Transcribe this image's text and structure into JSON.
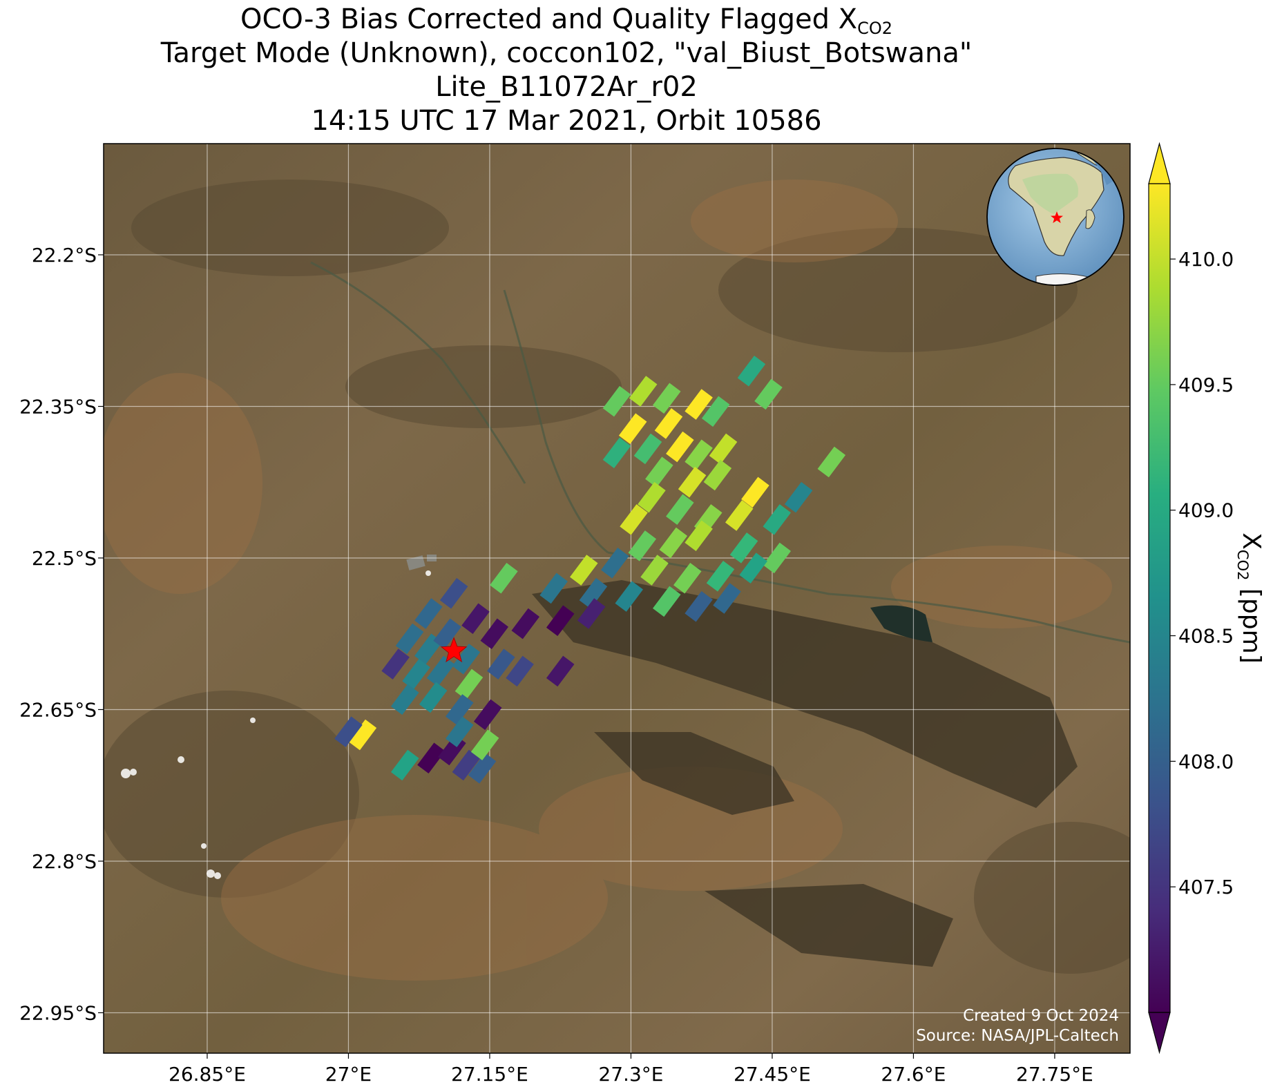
{
  "title": {
    "line1_prefix": "OCO-3 Bias Corrected and Quality Flagged X",
    "line1_sub": "CO2",
    "line2": "Target Mode (Unknown), coccon102, \"val_Biust_Botswana\"",
    "line3": "Lite_B11072Ar_r02",
    "line4": "14:15 UTC 17 Mar 2021, Orbit 10586"
  },
  "map": {
    "lon_range": [
      26.74,
      27.83
    ],
    "lat_range": [
      -22.99,
      -22.09
    ],
    "lon_ticks": [
      "26.85°E",
      "27°E",
      "27.15°E",
      "27.3°E",
      "27.45°E",
      "27.6°E",
      "27.75°E"
    ],
    "lon_tick_values": [
      26.85,
      27.0,
      27.15,
      27.3,
      27.45,
      27.6,
      27.75
    ],
    "lat_ticks": [
      "22.2°S",
      "22.35°S",
      "22.5°S",
      "22.65°S",
      "22.8°S",
      "22.95°S"
    ],
    "lat_tick_values": [
      -22.2,
      -22.35,
      -22.5,
      -22.65,
      -22.8,
      -22.95
    ],
    "gridlines": true,
    "target_marker": {
      "lon": 27.112,
      "lat": -22.592,
      "color": "#ff0000",
      "shape": "star"
    },
    "credit_line1": "Created 9 Oct 2024",
    "credit_line2": "Source: NASA/JPL-Caltech",
    "inset_globe": {
      "placement": "top-right",
      "marker_color": "#ff0000"
    }
  },
  "colorbar": {
    "label_prefix": "X",
    "label_sub": "CO2",
    "label_suffix": " [ppm]",
    "min": 407.0,
    "max": 410.3,
    "ticks": [
      "407.5",
      "408.0",
      "408.5",
      "409.0",
      "409.5",
      "410.0"
    ],
    "tick_values": [
      407.5,
      408.0,
      408.5,
      409.0,
      409.5,
      410.0
    ],
    "colormap": "viridis",
    "extend": "both"
  },
  "chart_data": {
    "type": "heatmap",
    "value_unit": "ppm",
    "soundings": [
      {
        "lon": 27.285,
        "lat": -22.345,
        "v": 409.5
      },
      {
        "lon": 27.313,
        "lat": -22.335,
        "v": 409.9
      },
      {
        "lon": 27.338,
        "lat": -22.342,
        "v": 409.6
      },
      {
        "lon": 27.372,
        "lat": -22.348,
        "v": 410.3
      },
      {
        "lon": 27.39,
        "lat": -22.355,
        "v": 409.4
      },
      {
        "lon": 27.428,
        "lat": -22.315,
        "v": 409.0
      },
      {
        "lon": 27.446,
        "lat": -22.338,
        "v": 409.5
      },
      {
        "lon": 27.34,
        "lat": -22.367,
        "v": 410.3
      },
      {
        "lon": 27.302,
        "lat": -22.372,
        "v": 410.3
      },
      {
        "lon": 27.285,
        "lat": -22.396,
        "v": 409.1
      },
      {
        "lon": 27.318,
        "lat": -22.392,
        "v": 409.3
      },
      {
        "lon": 27.352,
        "lat": -22.39,
        "v": 410.3
      },
      {
        "lon": 27.372,
        "lat": -22.398,
        "v": 409.7
      },
      {
        "lon": 27.398,
        "lat": -22.392,
        "v": 410.0
      },
      {
        "lon": 27.33,
        "lat": -22.415,
        "v": 409.6
      },
      {
        "lon": 27.365,
        "lat": -22.425,
        "v": 410.1
      },
      {
        "lon": 27.392,
        "lat": -22.418,
        "v": 409.8
      },
      {
        "lon": 27.432,
        "lat": -22.435,
        "v": 410.3
      },
      {
        "lon": 27.478,
        "lat": -22.44,
        "v": 408.5
      },
      {
        "lon": 27.513,
        "lat": -22.405,
        "v": 409.6
      },
      {
        "lon": 27.322,
        "lat": -22.44,
        "v": 409.9
      },
      {
        "lon": 27.352,
        "lat": -22.452,
        "v": 409.5
      },
      {
        "lon": 27.382,
        "lat": -22.462,
        "v": 409.7
      },
      {
        "lon": 27.415,
        "lat": -22.458,
        "v": 410.1
      },
      {
        "lon": 27.455,
        "lat": -22.462,
        "v": 409.0
      },
      {
        "lon": 27.303,
        "lat": -22.462,
        "v": 410.1
      },
      {
        "lon": 27.312,
        "lat": -22.488,
        "v": 409.5
      },
      {
        "lon": 27.345,
        "lat": -22.485,
        "v": 409.7
      },
      {
        "lon": 27.372,
        "lat": -22.478,
        "v": 409.9
      },
      {
        "lon": 27.42,
        "lat": -22.49,
        "v": 409.2
      },
      {
        "lon": 27.455,
        "lat": -22.5,
        "v": 409.5
      },
      {
        "lon": 27.283,
        "lat": -22.505,
        "v": 408.2
      },
      {
        "lon": 27.325,
        "lat": -22.512,
        "v": 409.8
      },
      {
        "lon": 27.36,
        "lat": -22.52,
        "v": 409.6
      },
      {
        "lon": 27.395,
        "lat": -22.518,
        "v": 409.2
      },
      {
        "lon": 27.43,
        "lat": -22.51,
        "v": 408.9
      },
      {
        "lon": 27.25,
        "lat": -22.512,
        "v": 410.0
      },
      {
        "lon": 27.218,
        "lat": -22.53,
        "v": 408.3
      },
      {
        "lon": 27.26,
        "lat": -22.535,
        "v": 408.2
      },
      {
        "lon": 27.298,
        "lat": -22.538,
        "v": 408.5
      },
      {
        "lon": 27.338,
        "lat": -22.543,
        "v": 409.4
      },
      {
        "lon": 27.372,
        "lat": -22.548,
        "v": 408.0
      },
      {
        "lon": 27.402,
        "lat": -22.54,
        "v": 408.1
      },
      {
        "lon": 27.165,
        "lat": -22.52,
        "v": 409.5
      },
      {
        "lon": 27.188,
        "lat": -22.565,
        "v": 407.1
      },
      {
        "lon": 27.225,
        "lat": -22.562,
        "v": 407.0
      },
      {
        "lon": 27.258,
        "lat": -22.555,
        "v": 407.3
      },
      {
        "lon": 27.155,
        "lat": -22.575,
        "v": 407.1
      },
      {
        "lon": 27.162,
        "lat": -22.605,
        "v": 407.9
      },
      {
        "lon": 27.182,
        "lat": -22.612,
        "v": 407.7
      },
      {
        "lon": 27.225,
        "lat": -22.612,
        "v": 407.2
      },
      {
        "lon": 27.135,
        "lat": -22.56,
        "v": 407.2
      },
      {
        "lon": 27.112,
        "lat": -22.535,
        "v": 407.8
      },
      {
        "lon": 27.085,
        "lat": -22.555,
        "v": 408.1
      },
      {
        "lon": 27.065,
        "lat": -22.58,
        "v": 408.2
      },
      {
        "lon": 27.085,
        "lat": -22.59,
        "v": 408.4
      },
      {
        "lon": 27.105,
        "lat": -22.575,
        "v": 408.0
      },
      {
        "lon": 27.125,
        "lat": -22.6,
        "v": 408.3
      },
      {
        "lon": 27.05,
        "lat": -22.605,
        "v": 407.5
      },
      {
        "lon": 27.072,
        "lat": -22.615,
        "v": 408.5
      },
      {
        "lon": 27.098,
        "lat": -22.612,
        "v": 408.3
      },
      {
        "lon": 27.128,
        "lat": -22.625,
        "v": 409.6
      },
      {
        "lon": 27.06,
        "lat": -22.64,
        "v": 408.4
      },
      {
        "lon": 27.09,
        "lat": -22.638,
        "v": 408.6
      },
      {
        "lon": 27.118,
        "lat": -22.65,
        "v": 408.1
      },
      {
        "lon": 27.148,
        "lat": -22.655,
        "v": 407.1
      },
      {
        "lon": 27.015,
        "lat": -22.675,
        "v": 410.3
      },
      {
        "lon": 27.0,
        "lat": -22.672,
        "v": 407.8
      },
      {
        "lon": 27.06,
        "lat": -22.705,
        "v": 408.9
      },
      {
        "lon": 27.088,
        "lat": -22.698,
        "v": 407.0
      },
      {
        "lon": 27.11,
        "lat": -22.69,
        "v": 407.1
      },
      {
        "lon": 27.125,
        "lat": -22.705,
        "v": 407.6
      },
      {
        "lon": 27.142,
        "lat": -22.708,
        "v": 408.0
      },
      {
        "lon": 27.145,
        "lat": -22.685,
        "v": 409.6
      },
      {
        "lon": 27.118,
        "lat": -22.672,
        "v": 408.3
      }
    ]
  }
}
